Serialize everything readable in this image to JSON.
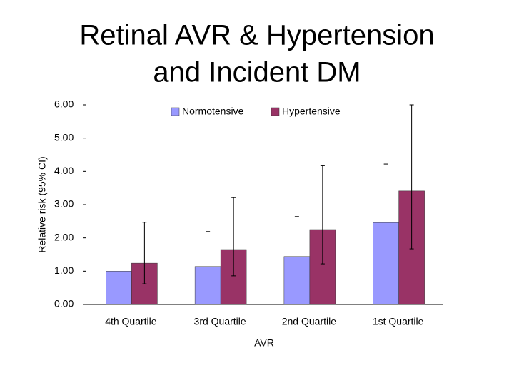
{
  "chart_data": {
    "type": "bar",
    "title": [
      "Retinal AVR & Hypertension",
      "and Incident DM"
    ],
    "x_label": "AVR",
    "y_label": "Relative risk (95% CI)",
    "categories": [
      "4th Quartile",
      "3rd Quartile",
      "2nd Quartile",
      "1st Quartile"
    ],
    "series": [
      {
        "name": "Normotensive",
        "color": "#9999ff",
        "values": [
          1.0,
          1.14,
          1.44,
          2.46
        ],
        "ci_low": [
          null,
          null,
          null,
          null
        ],
        "ci_high": [
          null,
          2.19,
          2.64,
          4.22
        ]
      },
      {
        "name": "Hypertensive",
        "color": "#993366",
        "values": [
          1.24,
          1.65,
          2.25,
          3.41
        ],
        "ci_low": [
          0.62,
          0.86,
          1.22,
          1.67
        ],
        "ci_high": [
          2.47,
          3.21,
          4.17,
          6.0
        ]
      }
    ],
    "ylim": [
      0,
      6
    ],
    "yticks": [
      {
        "value": 0,
        "label": "0.00"
      },
      {
        "value": 1,
        "label": "1.00"
      },
      {
        "value": 2,
        "label": "2.00"
      },
      {
        "value": 3,
        "label": "3.00"
      },
      {
        "value": 4,
        "label": "4.00"
      },
      {
        "value": 5,
        "label": "5.00"
      },
      {
        "value": 6,
        "label": "6.00"
      }
    ],
    "legend": "top"
  }
}
